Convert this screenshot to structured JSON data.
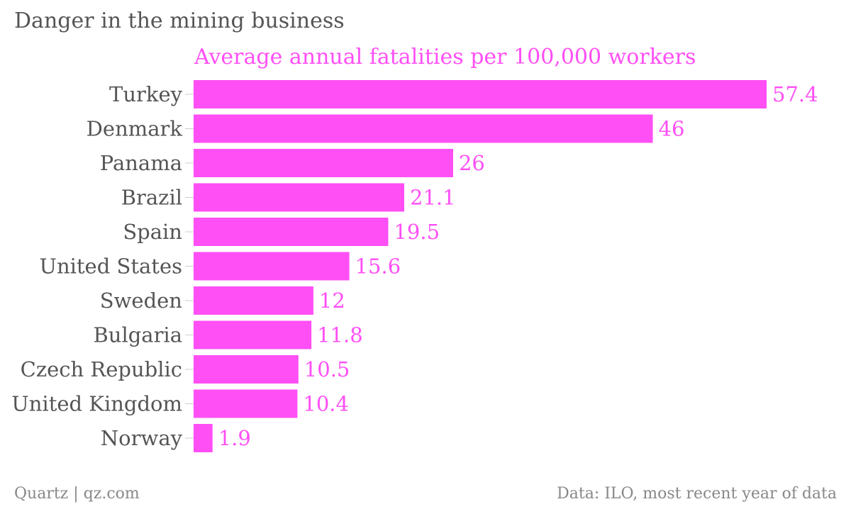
{
  "header": {
    "title": "Danger in the mining business"
  },
  "chart_data": {
    "type": "bar",
    "orientation": "horizontal",
    "title": "Danger in the mining business",
    "subtitle": "Average annual fatalities per 100,000 workers",
    "categories": [
      "Turkey",
      "Denmark",
      "Panama",
      "Brazil",
      "Spain",
      "United States",
      "Sweden",
      "Bulgaria",
      "Czech Republic",
      "United Kingdom",
      "Norway"
    ],
    "values": [
      57.4,
      46,
      26,
      21.1,
      19.5,
      15.6,
      12,
      11.8,
      10.5,
      10.4,
      1.9
    ],
    "value_labels": [
      "57.4",
      "46",
      "26",
      "21.1",
      "19.5",
      "15.6",
      "12",
      "11.8",
      "10.5",
      "10.4",
      "1.9"
    ],
    "xlim": [
      0,
      57.4
    ],
    "grid": false,
    "legend": "none",
    "bar_color": "#ff4ff5",
    "label_color": "#ff4ff5",
    "category_color": "#555555",
    "tick_color": "#cccccc"
  },
  "footer": {
    "source_left": "Quartz | qz.com",
    "source_right": "Data: ILO, most recent year of data"
  }
}
